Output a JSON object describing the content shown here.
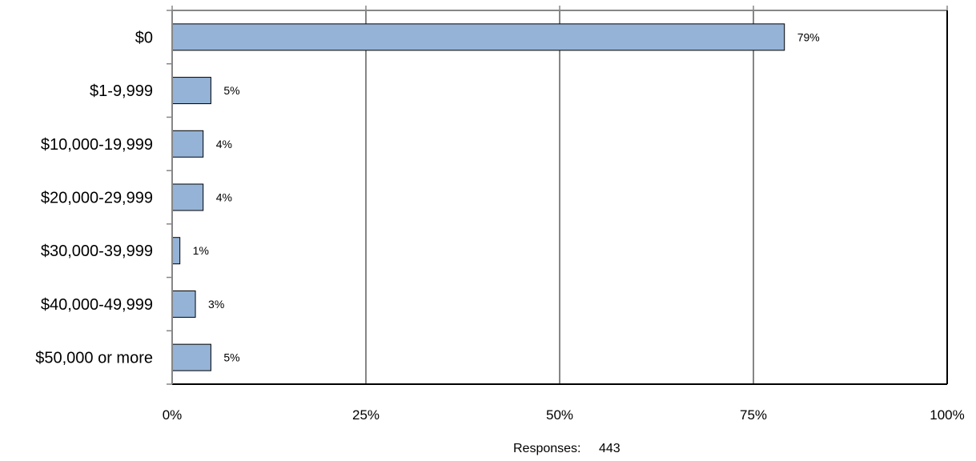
{
  "chart_data": {
    "type": "bar",
    "orientation": "horizontal",
    "categories": [
      "$0",
      "$1-9,999",
      "$10,000-19,999",
      "$20,000-29,999",
      "$30,000-39,999",
      "$40,000-49,999",
      "$50,000 or more"
    ],
    "values": [
      79,
      5,
      4,
      4,
      1,
      3,
      5
    ],
    "value_labels": [
      "79%",
      "5%",
      "4%",
      "4%",
      "1%",
      "3%",
      "5%"
    ],
    "xlim": [
      0,
      100
    ],
    "x_ticks": [
      0,
      25,
      50,
      75,
      100
    ],
    "x_tick_labels": [
      "0%",
      "25%",
      "50%",
      "75%",
      "100%"
    ],
    "grid": true,
    "bar_color": "#95b3d7",
    "bar_edge_color": "#000000"
  },
  "footer": {
    "responses_label": "Responses:",
    "responses_value": "443"
  }
}
